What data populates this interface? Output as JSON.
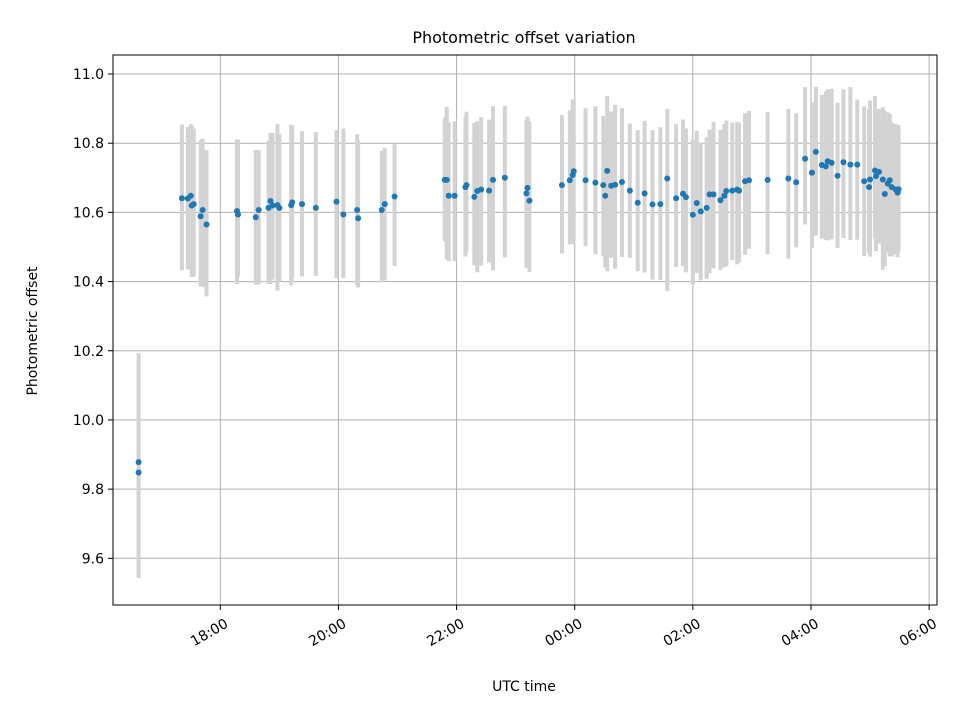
{
  "chart_data": {
    "type": "scatter",
    "title": "Photometric offset variation",
    "xlabel": "UTC time",
    "ylabel": "Photometric offset",
    "x_axis": "time",
    "x_tick_labels": [
      "18:00",
      "20:00",
      "22:00",
      "00:00",
      "02:00",
      "04:00",
      "06:00"
    ],
    "y_ticks": [
      9.6,
      9.8,
      10.0,
      10.2,
      10.4,
      10.6,
      10.8,
      11.0
    ],
    "y_tick_labels": [
      "9.6",
      "9.8",
      "10.0",
      "10.2",
      "10.4",
      "10.6",
      "10.8",
      "11.0"
    ],
    "x_range": [
      "16:11",
      "06:08"
    ],
    "ylim": [
      9.465,
      11.055
    ],
    "grid": true,
    "colors": {
      "point": "#1f77b4",
      "errorbar": "#d3d3d3",
      "grid": "#b0b0b0"
    },
    "series": [
      {
        "x": [
          "16:37",
          "16:37",
          "17:21",
          "17:27",
          "17:30",
          "17:31",
          "17:33",
          "17:40",
          "17:42",
          "17:46",
          "18:17",
          "18:18",
          "18:36",
          "18:39",
          "18:49",
          "18:51",
          "18:53",
          "18:58",
          "19:00",
          "19:12",
          "19:13",
          "19:23",
          "19:37",
          "19:58",
          "20:05",
          "20:19",
          "20:20",
          "20:44",
          "20:47",
          "20:57",
          "21:48",
          "21:50",
          "21:52",
          "21:58",
          "22:09",
          "22:10",
          "22:18",
          "22:21",
          "22:25",
          "22:33",
          "22:37",
          "22:49",
          "23:11",
          "23:12",
          "23:14",
          "23:47",
          "23:55",
          "23:58",
          "23:59",
          "00:11",
          "00:21",
          "00:29",
          "00:31",
          "00:33",
          "00:37",
          "00:41",
          "00:48",
          "00:56",
          "01:04",
          "01:11",
          "01:19",
          "01:27",
          "01:34",
          "01:43",
          "01:50",
          "01:53",
          "02:00",
          "02:04",
          "02:08",
          "02:14",
          "02:17",
          "02:21",
          "02:28",
          "02:32",
          "02:34",
          "02:40",
          "02:45",
          "02:47",
          "02:53",
          "02:57",
          "03:16",
          "03:37",
          "03:45",
          "03:54",
          "04:01",
          "04:05",
          "04:11",
          "04:15",
          "04:17",
          "04:21",
          "04:27",
          "04:33",
          "04:40",
          "04:47",
          "04:54",
          "04:59",
          "05:00",
          "05:05",
          "05:06",
          "05:09",
          "05:13",
          "05:15",
          "05:18",
          "05:20",
          "05:22",
          "05:26",
          "05:28",
          "05:29"
        ],
        "y": [
          9.848,
          9.878,
          10.641,
          10.64,
          10.648,
          10.62,
          10.624,
          10.589,
          10.607,
          10.565,
          10.604,
          10.594,
          10.586,
          10.607,
          10.613,
          10.633,
          10.62,
          10.621,
          10.613,
          10.621,
          10.629,
          10.624,
          10.613,
          10.631,
          10.594,
          10.607,
          10.583,
          10.607,
          10.624,
          10.646,
          10.694,
          10.694,
          10.648,
          10.648,
          10.673,
          10.679,
          10.645,
          10.662,
          10.666,
          10.663,
          10.694,
          10.7,
          10.655,
          10.671,
          10.634,
          10.679,
          10.693,
          10.708,
          10.719,
          10.693,
          10.686,
          10.679,
          10.648,
          10.72,
          10.677,
          10.68,
          10.688,
          10.663,
          10.628,
          10.655,
          10.623,
          10.624,
          10.698,
          10.641,
          10.654,
          10.644,
          10.593,
          10.627,
          10.603,
          10.613,
          10.652,
          10.652,
          10.635,
          10.648,
          10.662,
          10.663,
          10.666,
          10.663,
          10.69,
          10.693,
          10.694,
          10.698,
          10.687,
          10.755,
          10.715,
          10.775,
          10.737,
          10.733,
          10.748,
          10.743,
          10.706,
          10.745,
          10.738,
          10.738,
          10.69,
          10.673,
          10.695,
          10.721,
          10.705,
          10.717,
          10.695,
          10.653,
          10.683,
          10.693,
          10.673,
          10.666,
          10.657,
          10.667
        ],
        "err_low": [
          9.563,
          9.543,
          10.433,
          10.435,
          10.436,
          10.413,
          10.415,
          10.386,
          10.385,
          10.357,
          10.393,
          10.414,
          10.392,
          10.392,
          10.393,
          10.393,
          10.406,
          10.374,
          10.399,
          10.389,
          10.409,
          10.415,
          10.417,
          10.41,
          10.41,
          10.39,
          10.383,
          10.398,
          10.403,
          10.445,
          10.516,
          10.464,
          10.459,
          10.459,
          10.472,
          10.487,
          10.447,
          10.427,
          10.446,
          10.455,
          10.433,
          10.47,
          10.44,
          10.439,
          10.428,
          10.481,
          10.507,
          10.509,
          10.519,
          10.502,
          10.479,
          10.473,
          10.441,
          10.43,
          10.469,
          10.437,
          10.471,
          10.469,
          10.43,
          10.426,
          10.406,
          10.405,
          10.373,
          10.442,
          10.445,
          10.427,
          10.392,
          10.425,
          10.403,
          10.408,
          10.424,
          10.438,
          10.433,
          10.441,
          10.445,
          10.462,
          10.45,
          10.456,
          10.478,
          10.495,
          10.479,
          10.466,
          10.499,
          10.565,
          10.497,
          10.533,
          10.524,
          10.52,
          10.519,
          10.522,
          10.497,
          10.526,
          10.52,
          10.521,
          10.474,
          10.483,
          10.472,
          10.525,
          10.488,
          10.51,
          10.434,
          10.445,
          10.484,
          10.473,
          10.472,
          10.478,
          10.47,
          10.487
        ],
        "err_high": [
          10.193,
          10.18,
          10.854,
          10.847,
          10.855,
          10.851,
          10.842,
          10.809,
          10.813,
          10.78,
          10.811,
          10.81,
          10.781,
          10.78,
          10.807,
          10.83,
          10.829,
          10.855,
          10.827,
          10.853,
          10.85,
          10.835,
          10.832,
          10.838,
          10.842,
          10.826,
          10.808,
          10.778,
          10.787,
          10.797,
          10.874,
          10.905,
          10.861,
          10.863,
          10.875,
          10.891,
          10.859,
          10.863,
          10.875,
          10.868,
          10.907,
          10.908,
          10.867,
          10.877,
          10.863,
          10.882,
          10.895,
          10.925,
          10.927,
          10.901,
          10.907,
          10.879,
          10.855,
          10.936,
          10.892,
          10.911,
          10.901,
          10.857,
          10.838,
          10.865,
          10.838,
          10.846,
          10.899,
          10.855,
          10.869,
          10.843,
          10.811,
          10.836,
          10.802,
          10.817,
          10.84,
          10.862,
          10.839,
          10.855,
          10.866,
          10.86,
          10.862,
          10.859,
          10.887,
          10.893,
          10.89,
          10.899,
          10.887,
          10.962,
          10.918,
          10.963,
          10.939,
          10.95,
          10.956,
          10.957,
          10.917,
          10.956,
          10.962,
          10.926,
          10.906,
          10.898,
          10.923,
          10.936,
          10.889,
          10.899,
          10.904,
          10.893,
          10.889,
          10.885,
          10.861,
          10.856,
          10.853,
          10.851
        ]
      }
    ]
  }
}
